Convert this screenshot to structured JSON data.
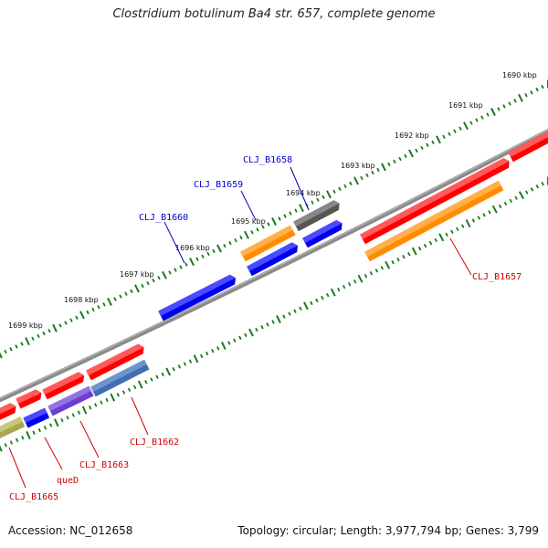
{
  "title": "Clostridium botulinum Ba4 str. 657, complete genome",
  "footer": {
    "accession": "Accession: NC_012658",
    "summary": "Topology: circular; Length: 3,977,794 bp; Genes: 3,799"
  },
  "colors": {
    "backbone": "#8a8a8a",
    "tick": "#1a7a1a",
    "label_top": "#0000cc",
    "label_bottom": "#cc0000"
  },
  "kbp_labels": [
    "1690 kbp",
    "1691 kbp",
    "1692 kbp",
    "1693 kbp",
    "1694 kbp",
    "1695 kbp",
    "1696 kbp",
    "1697 kbp",
    "1698 kbp",
    "1699 kbp"
  ],
  "gene_labels_top": [
    "CLJ_B1658",
    "CLJ_B1659",
    "CLJ_B1660"
  ],
  "gene_labels_bottom": [
    "CLJ_B1657",
    "CLJ_B1662",
    "CLJ_B1663",
    "queD",
    "CLJ_B1665"
  ]
}
